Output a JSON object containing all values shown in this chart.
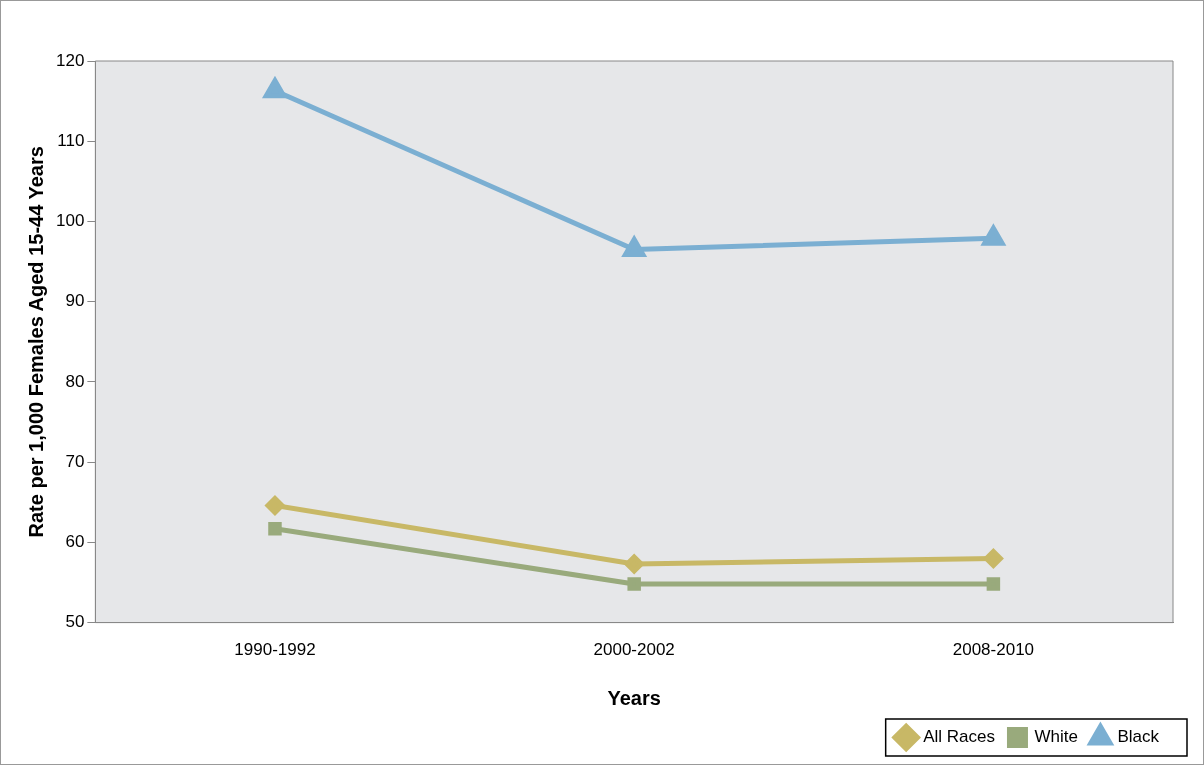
{
  "chart_data": {
    "type": "line",
    "xlabel": "Years",
    "ylabel": "Rate per 1,000 Females Aged 15-44 Years",
    "categories": [
      "1990-1992",
      "2000-2002",
      "2008-2010"
    ],
    "series": [
      {
        "name": "All Races",
        "color": "#c8b866",
        "values": [
          64.6,
          57.3,
          58.0
        ],
        "marker": "diamond"
      },
      {
        "name": "White",
        "color": "#99aa7c",
        "values": [
          61.7,
          54.8,
          54.8
        ],
        "marker": "square"
      },
      {
        "name": "Black",
        "color": "#7bafd2",
        "values": [
          116.3,
          96.5,
          97.9
        ],
        "marker": "triangle"
      }
    ],
    "ylim": [
      50,
      120
    ],
    "yticks": [
      50,
      60,
      70,
      80,
      90,
      100,
      110,
      120
    ],
    "grid": false,
    "legend": "bottom right",
    "line_style": "solid"
  }
}
